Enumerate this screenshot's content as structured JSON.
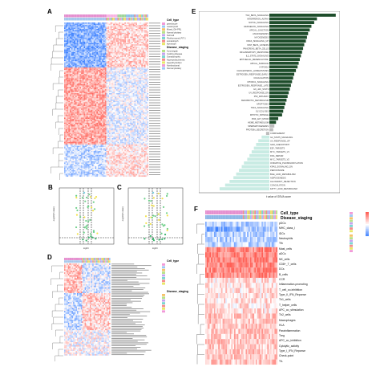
{
  "panels": {
    "a": {
      "label": "A"
    },
    "b": {
      "label": "B"
    },
    "c": {
      "label": "C"
    },
    "d": {
      "label": "D"
    },
    "e": {
      "label": "E"
    },
    "f": {
      "label": "F"
    }
  },
  "panel_a": {
    "legend_title1": "Cell_type",
    "legend_items1": [
      "granulocyte",
      "mastocytoid",
      "Mixed_GH-PRL",
      "Normal pituitary",
      "Null cell",
      "Plurihormonal_PIT-1",
      "somatotroph",
      "thyrotroph"
    ],
    "legend_title2": "Disease_staging",
    "legend_items2": [
      "Acromegaly",
      "Cushing disease",
      "Gonadotrophic",
      "Hyperprolactinemia",
      "Hyperthyroidism",
      "Nonfunctional",
      "Normal pituitary"
    ]
  },
  "panel_b": {
    "ylabel": "-Log10(P-value)",
    "xlabel": "logFC"
  },
  "panel_c": {
    "ylabel": "-Log10(P-value)",
    "xlabel": "logFC"
  },
  "panel_d": {
    "legend_title1": "Cell_type",
    "legend_title2": "Disease_staging"
  },
  "panel_e": {
    "xlabel": "t value of GSVA score",
    "pathways": [
      {
        "name": "TGF_BETA_SIGNALING",
        "value": 12.0
      },
      {
        "name": "INTERFERON_ALPHA",
        "value": 8.6
      },
      {
        "name": "NOTCH_SIGNALING",
        "value": 8.1
      },
      {
        "name": "HEDGEHOG_SIGNALING",
        "value": 7.6
      },
      {
        "name": "APICAL_JUNCTION",
        "value": 7.3
      },
      {
        "name": "ANGIOGENESIS",
        "value": 7.0
      },
      {
        "name": "MYOGENESIS",
        "value": 6.8
      },
      {
        "name": "KRAS_SIGNALING_UP",
        "value": 6.6
      },
      {
        "name": "WNT_BETA_CATENIN",
        "value": 6.3
      },
      {
        "name": "PANCREAS_BETA_CELLS",
        "value": 6.1
      },
      {
        "name": "INFLAMMATORY_RESPONSE",
        "value": 5.9
      },
      {
        "name": "IL2_STAT5_SIGNALING",
        "value": 5.7
      },
      {
        "name": "EPITHELIAL_MESENCHYMAL",
        "value": 5.5
      },
      {
        "name": "APICAL_SURFACE",
        "value": 5.3
      },
      {
        "name": "HYPOXIA",
        "value": 5.1
      },
      {
        "name": "CHOLESTEROL_HOMEOSTASIS",
        "value": 4.8
      },
      {
        "name": "ESTROGEN_RESPONSE_EARLY",
        "value": 4.5
      },
      {
        "name": "COAGULATION",
        "value": 4.3
      },
      {
        "name": "MTORC1_SIGNALING",
        "value": 4.1
      },
      {
        "name": "ESTROGEN_RESPONSE_LATE",
        "value": 3.9
      },
      {
        "name": "IL6_JAK_STAT3",
        "value": 3.7
      },
      {
        "name": "UV_RESPONSE_DN",
        "value": 3.5
      },
      {
        "name": "P53_PATHWAY",
        "value": 3.3
      },
      {
        "name": "XENOBIOTIC_METABOLISM",
        "value": 3.1
      },
      {
        "name": "APOPTOSIS",
        "value": 2.9
      },
      {
        "name": "TNFA_SIGNALING",
        "value": 2.7
      },
      {
        "name": "GLYCOLYSIS",
        "value": 2.5
      },
      {
        "name": "MITOTIC_SPINDLE",
        "value": 2.3
      },
      {
        "name": "PI3K_AKT_MTOR",
        "value": 1.6
      },
      {
        "name": "HEME_METABOLISM",
        "value": 1.2
      },
      {
        "name": "SPERMATOGENESIS",
        "value": 0.9
      },
      {
        "name": "PROTEIN_SECRETION",
        "value": 0.7
      },
      {
        "name": "COMPLEMENT",
        "value": -0.6
      },
      {
        "name": "IL2_STAT5_SIGNALING",
        "value": -1.4
      },
      {
        "name": "UV_RESPONSE_UP",
        "value": -2.0
      },
      {
        "name": "G2M_CHECKPOINT",
        "value": -2.4
      },
      {
        "name": "E2F_TARGETS",
        "value": -2.8
      },
      {
        "name": "MYC_TARGETS_V1",
        "value": -3.2
      },
      {
        "name": "DNA_REPAIR",
        "value": -3.6
      },
      {
        "name": "MYC_TARGETS_V2",
        "value": -4.0
      },
      {
        "name": "OXIDATIVE_PHOSPHORYLATION",
        "value": -4.6
      },
      {
        "name": "KRAS_SIGNALING_DN",
        "value": -5.0
      },
      {
        "name": "PEROXISOME",
        "value": -5.5
      },
      {
        "name": "BILE_ACID_METABOLISM",
        "value": -6.0
      },
      {
        "name": "ADIPOGENESIS",
        "value": -6.5
      },
      {
        "name": "ALLOGRAFT_REJECTION",
        "value": -7.2
      },
      {
        "name": "COAGULATION",
        "value": -8.0
      },
      {
        "name": "FATTY_ACID_METABOLISM",
        "value": -9.0
      }
    ]
  },
  "panel_f": {
    "anno1": "Cell_type",
    "anno2": "Disease_staging",
    "rows": [
      "pDCs",
      "MHC_class_I",
      "iDCs",
      "Neutrophils",
      "Tfh",
      "Mast_cells",
      "aDCs",
      "NK_cells",
      "CD8+_T_cells",
      "DCs",
      "B_cells",
      "CCR",
      "Inflammation-promoting",
      "T_cell_co-inhibition",
      "Type_II_IFN_Reponse",
      "Th1_cells",
      "T_helper_cells",
      "APC_co_stimulation",
      "Th2_cells",
      "Macrophages",
      "HLA",
      "Parainflammation",
      "Treg",
      "APC_co_inhibition",
      "Cytolytic_activity",
      "Type_I_IFN_Reponse",
      "Check-point",
      "TIL"
    ]
  },
  "colors": {
    "e_pos": "#1e4d2b",
    "e_neg": "#c8ebe3",
    "e_mid": "#bdbdbd",
    "heat_red": "#e8534f",
    "heat_blue": "#3a78b8"
  }
}
